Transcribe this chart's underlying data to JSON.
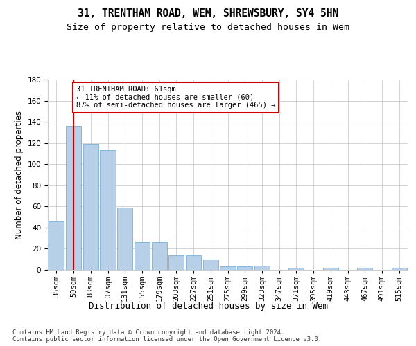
{
  "title1": "31, TRENTHAM ROAD, WEM, SHREWSBURY, SY4 5HN",
  "title2": "Size of property relative to detached houses in Wem",
  "xlabel": "Distribution of detached houses by size in Wem",
  "ylabel": "Number of detached properties",
  "categories": [
    "35sqm",
    "59sqm",
    "83sqm",
    "107sqm",
    "131sqm",
    "155sqm",
    "179sqm",
    "203sqm",
    "227sqm",
    "251sqm",
    "275sqm",
    "299sqm",
    "323sqm",
    "347sqm",
    "371sqm",
    "395sqm",
    "419sqm",
    "443sqm",
    "467sqm",
    "491sqm",
    "515sqm"
  ],
  "values": [
    46,
    136,
    119,
    113,
    59,
    26,
    26,
    14,
    14,
    10,
    3,
    3,
    4,
    0,
    2,
    0,
    2,
    0,
    2,
    0,
    2
  ],
  "bar_color": "#b8cfe8",
  "bar_edge_color": "#7aadd4",
  "vline_x": 1,
  "vline_color": "#cc0000",
  "annotation_text": "31 TRENTHAM ROAD: 61sqm\n← 11% of detached houses are smaller (60)\n87% of semi-detached houses are larger (465) →",
  "annotation_box_color": "#ffffff",
  "annotation_box_edge": "#cc0000",
  "ylim": [
    0,
    180
  ],
  "yticks": [
    0,
    20,
    40,
    60,
    80,
    100,
    120,
    140,
    160,
    180
  ],
  "footnote": "Contains HM Land Registry data © Crown copyright and database right 2024.\nContains public sector information licensed under the Open Government Licence v3.0.",
  "background_color": "#ffffff",
  "grid_color": "#cccccc",
  "title1_fontsize": 10.5,
  "title2_fontsize": 9.5,
  "xlabel_fontsize": 9,
  "ylabel_fontsize": 8.5,
  "tick_fontsize": 7.5,
  "annot_fontsize": 7.5,
  "footnote_fontsize": 6.5
}
